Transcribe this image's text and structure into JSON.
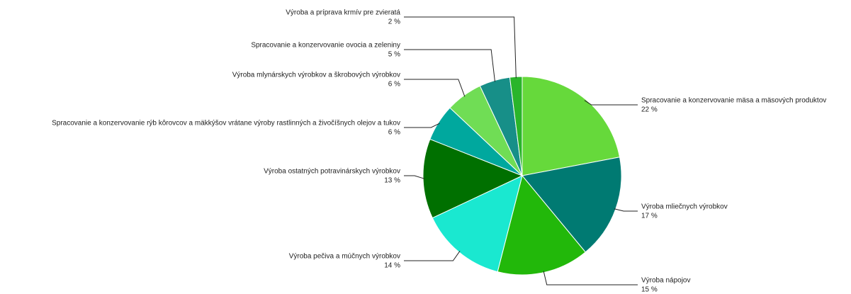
{
  "chart_data": {
    "type": "pie",
    "categories": [
      "Spracovanie a konzervovanie mäsa a mäsových produktov",
      "Výroba mliečnych výrobkov",
      "Výroba nápojov",
      "Výroba pečiva a múčnych výrobkov",
      "Výroba ostatných potravinárskych výrobkov",
      "Spracovanie a konzervovanie rýb kôrovcov a mäkkýšov vrátane výroby rastlinných a živočíšnych olejov a tukov",
      "Výroba mlynárskych výrobkov a škrobových výrobkov",
      "Spracovanie a konzervovanie ovocia a zeleniny",
      "Výroba a príprava krmív pre zvieratá"
    ],
    "values": [
      22,
      17,
      15,
      14,
      13,
      6,
      6,
      5,
      2
    ],
    "value_labels": [
      "22 %",
      "17 %",
      "15 %",
      "14 %",
      "13 %",
      "6 %",
      "6 %",
      "5 %",
      "2 %"
    ],
    "colors": [
      "#66d93b",
      "#007a72",
      "#22b80a",
      "#1ae8d0",
      "#007000",
      "#00a89e",
      "#70dd55",
      "#178f88",
      "#2ab52a"
    ]
  }
}
